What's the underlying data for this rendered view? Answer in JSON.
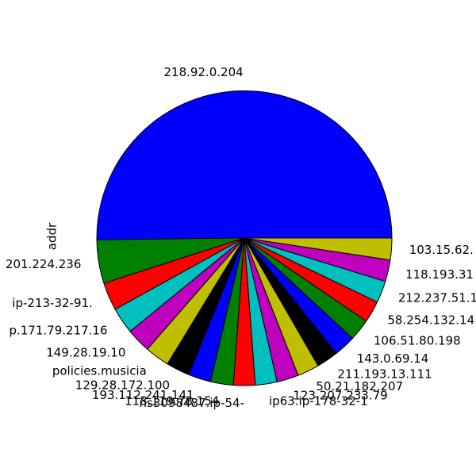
{
  "chart_data": {
    "type": "pie",
    "ylabel": "addr",
    "start_angle_deg": 0,
    "direction": "counterclockwise",
    "edge_color": "#000000",
    "slices": [
      {
        "label": "218.92.0.204",
        "value": 50.6,
        "color": "#0000ff"
      },
      {
        "label": "201.224.236",
        "value": 4.8,
        "color": "#008000"
      },
      {
        "label": "ip-213-32-91.",
        "value": 3.1,
        "color": "#ff0000"
      },
      {
        "label": "p.171.79.217.16",
        "value": 2.9,
        "color": "#00bfbf"
      },
      {
        "label": "149.28.19.10",
        "value": 2.7,
        "color": "#bf00bf"
      },
      {
        "label": "policies.musicia",
        "value": 2.7,
        "color": "#bfbf00"
      },
      {
        "label": "129.28.172.100",
        "value": 2.6,
        "color": "#000000"
      },
      {
        "label": "193.112.241.141",
        "value": 2.5,
        "color": "#0000ff"
      },
      {
        "label": "118.119.78.154",
        "value": 2.5,
        "color": "#008000"
      },
      {
        "label": "ns3098487.ip-54-",
        "value": 2.4,
        "color": "#ff0000"
      },
      {
        "label": "ip63.ip-178-32-1",
        "value": 2.4,
        "color": "#00bfbf"
      },
      {
        "label": "123.207.233.79",
        "value": 2.4,
        "color": "#bf00bf"
      },
      {
        "label": "50.21.182.207",
        "value": 2.4,
        "color": "#bfbf00"
      },
      {
        "label": "211.193.13.111",
        "value": 2.4,
        "color": "#000000"
      },
      {
        "label": "143.0.69.14",
        "value": 2.4,
        "color": "#0000ff"
      },
      {
        "label": "106.51.80.198",
        "value": 2.4,
        "color": "#008000"
      },
      {
        "label": "58.254.132.14",
        "value": 2.4,
        "color": "#ff0000"
      },
      {
        "label": "212.237.51.1",
        "value": 2.4,
        "color": "#00bfbf"
      },
      {
        "label": "118.193.31",
        "value": 2.4,
        "color": "#bf00bf"
      },
      {
        "label": "103.15.62.",
        "value": 2.4,
        "color": "#bfbf00"
      }
    ]
  }
}
